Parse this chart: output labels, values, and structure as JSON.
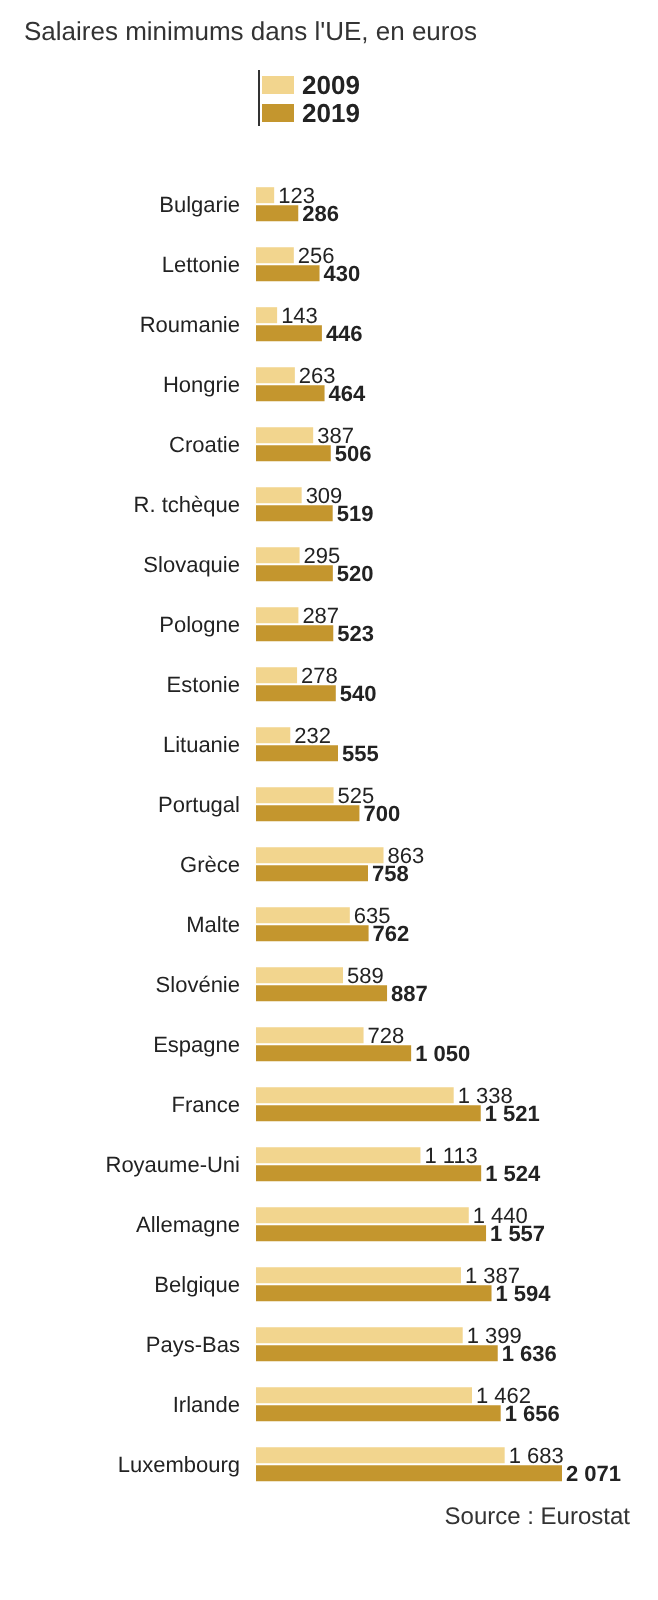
{
  "chart_data": {
    "type": "bar",
    "orientation": "horizontal",
    "title": "Salaires minimums dans l'UE, en euros",
    "categories": [
      "Bulgarie",
      "Lettonie",
      "Roumanie",
      "Hongrie",
      "Croatie",
      "R. tchèque",
      "Slovaquie",
      "Pologne",
      "Estonie",
      "Lituanie",
      "Portugal",
      "Grèce",
      "Malte",
      "Slovénie",
      "Espagne",
      "France",
      "Royaume-Uni",
      "Allemagne",
      "Belgique",
      "Pays-Bas",
      "Irlande",
      "Luxembourg"
    ],
    "series": [
      {
        "name": "2009",
        "color": "#f2d58e",
        "values": [
          123,
          256,
          143,
          263,
          387,
          309,
          295,
          287,
          278,
          232,
          525,
          863,
          635,
          589,
          728,
          1338,
          1113,
          1440,
          1387,
          1399,
          1462,
          1683
        ],
        "value_labels": [
          "123",
          "256",
          "143",
          "263",
          "387",
          "309",
          "295",
          "287",
          "278",
          "232",
          "525",
          "863",
          "635",
          "589",
          "728",
          "1 338",
          "1 113",
          "1 440",
          "1 387",
          "1 399",
          "1 462",
          "1 683"
        ]
      },
      {
        "name": "2019",
        "color": "#c4962e",
        "values": [
          286,
          430,
          446,
          464,
          506,
          519,
          520,
          523,
          540,
          555,
          700,
          758,
          762,
          887,
          1050,
          1521,
          1524,
          1557,
          1594,
          1636,
          1656,
          2071
        ],
        "value_labels": [
          "286",
          "430",
          "446",
          "464",
          "506",
          "519",
          "520",
          "523",
          "540",
          "555",
          "700",
          "758",
          "762",
          "887",
          "1 050",
          "1 521",
          "1 524",
          "1 557",
          "1 594",
          "1 636",
          "1 656",
          "2 071"
        ]
      }
    ],
    "legend": "top",
    "annotations": [
      "Source : Eurostat"
    ]
  }
}
